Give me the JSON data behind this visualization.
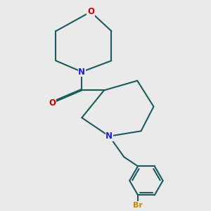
{
  "bg_color": "#eaeaea",
  "bond_color": "#1a5c5c",
  "o_color": "#cc0000",
  "n_color": "#2222cc",
  "br_color": "#cc8800",
  "o_label": "O",
  "n_label": "N",
  "br_label": "Br",
  "line_width": 1.5,
  "font_size": 8.5
}
